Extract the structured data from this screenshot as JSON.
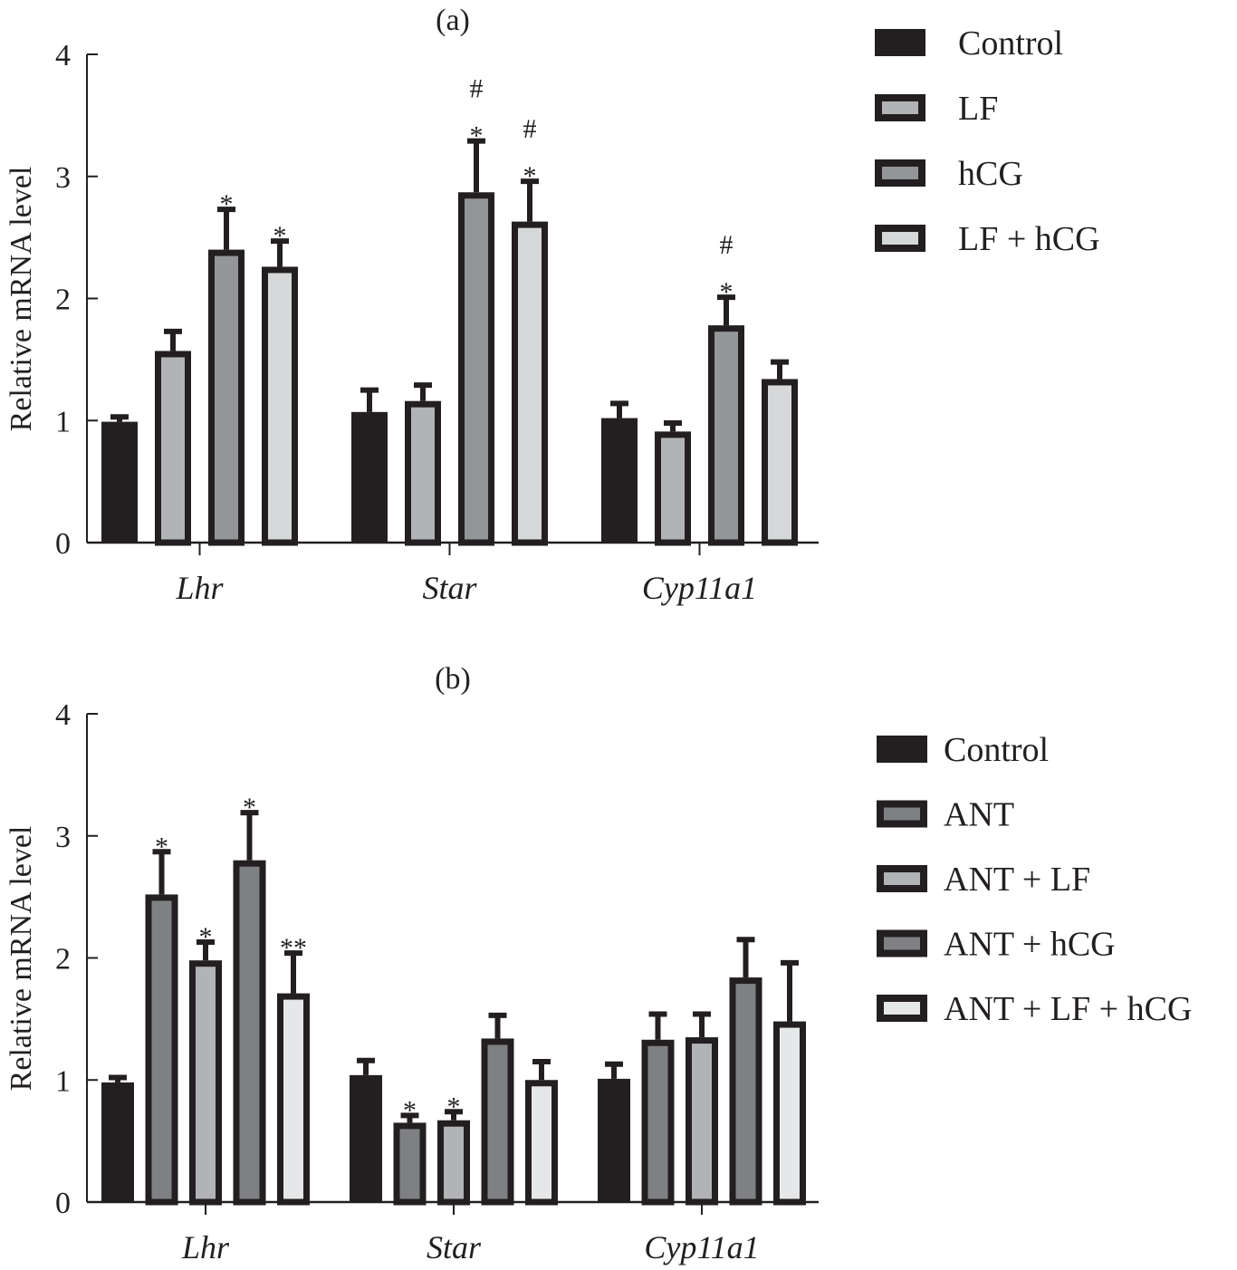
{
  "chart_data": [
    {
      "type": "bar",
      "panel": "(a)",
      "title": "(a)",
      "xlabel": "",
      "ylabel": "Relative mRNA level",
      "ylim": [
        0,
        4
      ],
      "yticks": [
        "0",
        "1",
        "2",
        "3",
        "4"
      ],
      "grid": false,
      "legend_position": "top-right",
      "categories": [
        "Lhr",
        "Star",
        "Cyp11a1"
      ],
      "series": [
        {
          "name": "Control",
          "color": "#231f20",
          "values": [
            0.99,
            1.07,
            1.02
          ],
          "error_upper": [
            1.03,
            1.25,
            1.14
          ],
          "annotations": [
            "",
            "",
            ""
          ]
        },
        {
          "name": "LF",
          "color": "#b1b3b6",
          "values": [
            1.57,
            1.16,
            0.91
          ],
          "error_upper": [
            1.73,
            1.29,
            0.98
          ],
          "annotations": [
            "",
            "",
            ""
          ]
        },
        {
          "name": "hCG",
          "color": "#939598",
          "values": [
            2.4,
            2.87,
            1.78
          ],
          "error_upper": [
            2.73,
            3.29,
            2.01
          ],
          "annotations": [
            "*",
            "#\n*",
            "#\n*"
          ]
        },
        {
          "name": "LF + hCG",
          "color": "#d6d7d9",
          "values": [
            2.26,
            2.63,
            1.34
          ],
          "error_upper": [
            2.47,
            2.96,
            1.48
          ],
          "annotations": [
            "*",
            "#\n*",
            ""
          ]
        }
      ]
    },
    {
      "type": "bar",
      "panel": "(b)",
      "title": "(b)",
      "xlabel": "",
      "ylabel": "Relative mRNA level",
      "ylim": [
        0,
        4
      ],
      "yticks": [
        "0",
        "1",
        "2",
        "3",
        "4"
      ],
      "grid": false,
      "legend_position": "right",
      "categories": [
        "Lhr",
        "Star",
        "Cyp11a1"
      ],
      "series": [
        {
          "name": "Control",
          "color": "#231f20",
          "values": [
            0.98,
            1.04,
            1.01
          ],
          "error_upper": [
            1.02,
            1.16,
            1.13
          ],
          "annotations": [
            "",
            "",
            ""
          ]
        },
        {
          "name": "ANT",
          "color": "#7f8083",
          "values": [
            2.52,
            0.65,
            1.33
          ],
          "error_upper": [
            2.87,
            0.71,
            1.54
          ],
          "annotations": [
            "*",
            "*",
            ""
          ]
        },
        {
          "name": "ANT + LF",
          "color": "#b1b3b6",
          "values": [
            1.98,
            0.67,
            1.35
          ],
          "error_upper": [
            2.13,
            0.74,
            1.54
          ],
          "annotations": [
            "*",
            "*",
            ""
          ]
        },
        {
          "name": "ANT + hCG",
          "color": "#7f8083",
          "values": [
            2.8,
            1.34,
            1.84
          ],
          "error_upper": [
            3.19,
            1.53,
            2.15
          ],
          "annotations": [
            "*",
            "",
            ""
          ]
        },
        {
          "name": "ANT + LF + hCG",
          "color": "#e6e7e8",
          "values": [
            1.71,
            1.0,
            1.48
          ],
          "error_upper": [
            2.04,
            1.15,
            1.96
          ],
          "annotations": [
            "**",
            "",
            ""
          ]
        }
      ]
    }
  ]
}
